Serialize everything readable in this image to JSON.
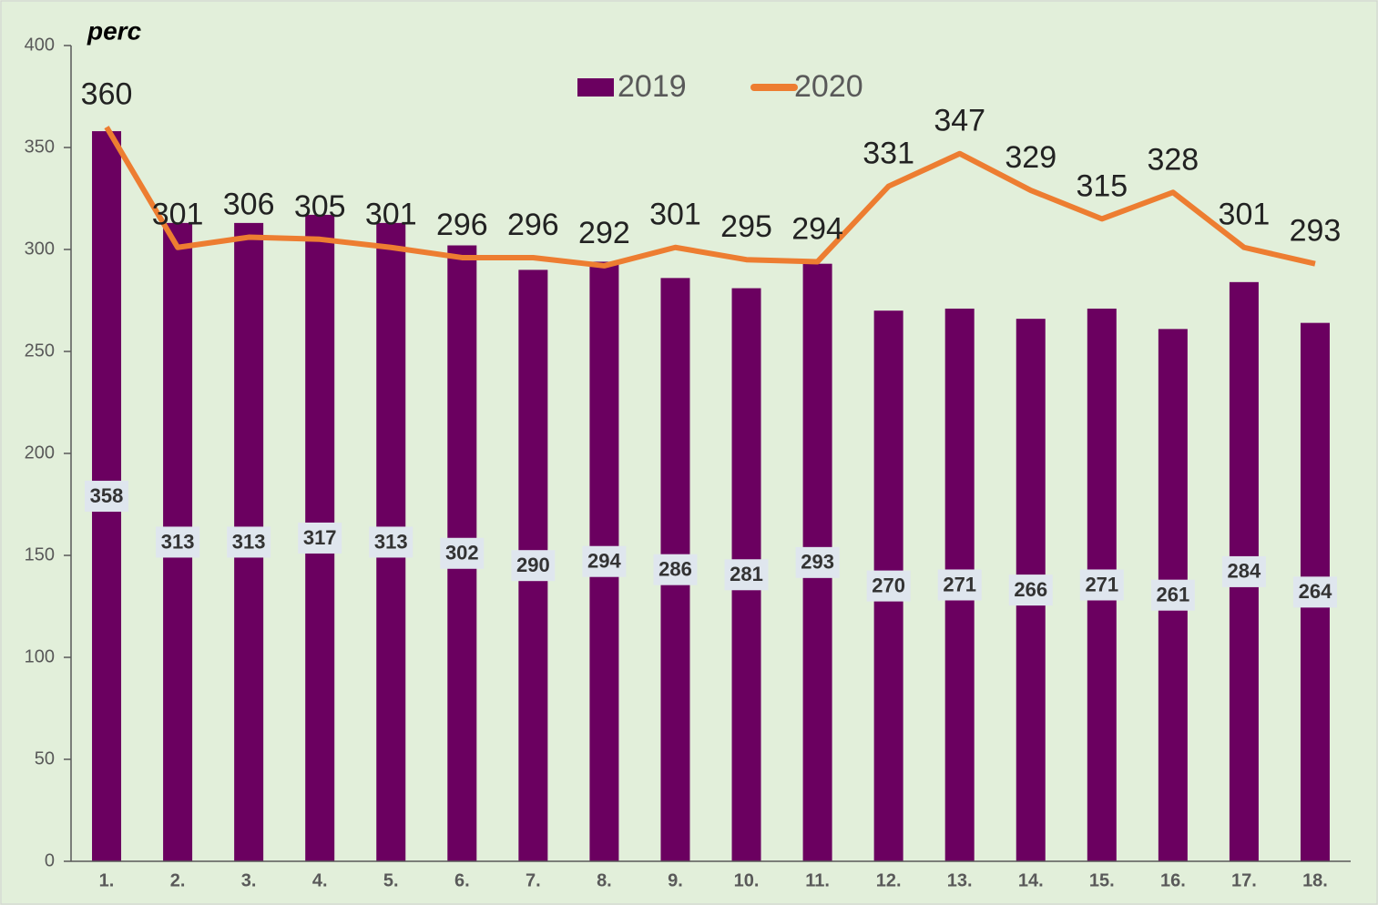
{
  "chart_data": {
    "type": "bar",
    "y_label": "perc",
    "categories": [
      "1.",
      "2.",
      "3.",
      "4.",
      "5.",
      "6.",
      "7.",
      "8.",
      "9.",
      "10.",
      "11.",
      "12.",
      "13.",
      "14.",
      "15.",
      "16.",
      "17.",
      "18."
    ],
    "series": [
      {
        "name": "2019",
        "type": "bar",
        "color": "#6b0060",
        "values": [
          358,
          313,
          313,
          317,
          313,
          302,
          290,
          294,
          286,
          281,
          293,
          270,
          271,
          266,
          271,
          261,
          284,
          264
        ]
      },
      {
        "name": "2020",
        "type": "line",
        "color": "#ed7d31",
        "values": [
          360,
          301,
          306,
          305,
          301,
          296,
          296,
          292,
          301,
          295,
          294,
          331,
          347,
          329,
          315,
          328,
          301,
          293
        ]
      }
    ],
    "ylim": [
      0,
      400
    ],
    "yticks": [
      0,
      50,
      100,
      150,
      200,
      250,
      300,
      350,
      400
    ],
    "legend": "top"
  }
}
